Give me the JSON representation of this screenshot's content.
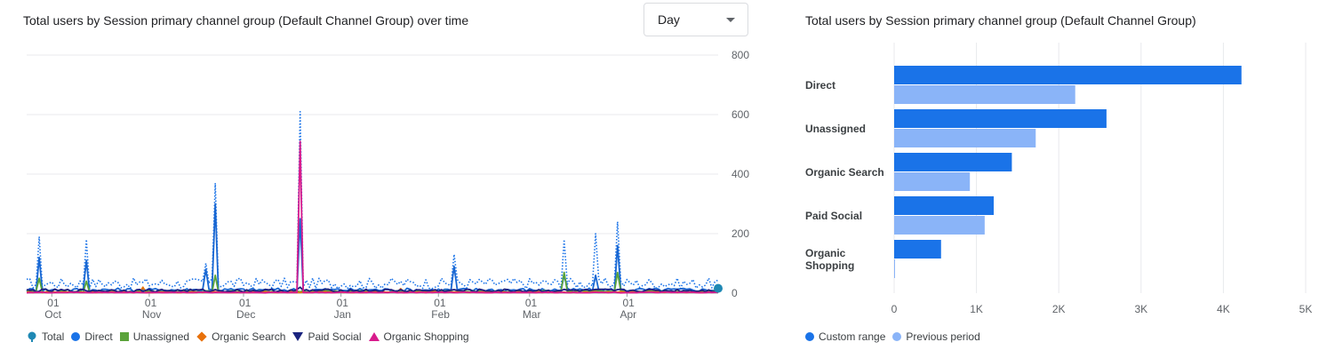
{
  "left_card": {
    "title": "Total users by Session primary channel group (Default Channel Group) over time",
    "dropdown_value": "Day"
  },
  "right_card": {
    "title": "Total users by Session primary channel group (Default Channel Group)"
  },
  "colors": {
    "Total": "#1a73e8",
    "Direct": "#1967d2",
    "Unassigned": "#5aa33a",
    "Organic Search": "#e8710a",
    "Paid Social": "#1a237e",
    "Organic Shopping": "#d81b8c",
    "custom_range": "#1a73e8",
    "previous_period": "#8ab4f8",
    "total_marker": "#1e88b4"
  },
  "left_legend": [
    {
      "label": "Total",
      "shape": "pin",
      "color": "#1e88b4"
    },
    {
      "label": "Direct",
      "shape": "circle",
      "color": "#1a73e8"
    },
    {
      "label": "Unassigned",
      "shape": "square",
      "color": "#5aa33a"
    },
    {
      "label": "Organic Search",
      "shape": "diamond",
      "color": "#e8710a"
    },
    {
      "label": "Paid Social",
      "shape": "tri-down",
      "color": "#1a237e"
    },
    {
      "label": "Organic Shopping",
      "shape": "tri-up",
      "color": "#d81b8c"
    }
  ],
  "right_legend": [
    {
      "label": "Custom range",
      "color": "#1a73e8"
    },
    {
      "label": "Previous period",
      "color": "#8ab4f8"
    }
  ],
  "chart_data": [
    {
      "type": "line",
      "title": "Total users by Session primary channel group (Default Channel Group) over time",
      "granularity": "Day",
      "y_ticks": [
        "0",
        "200",
        "400",
        "600",
        "800"
      ],
      "ylim": [
        0,
        800
      ],
      "y_axis_position": "right",
      "x_tick_labels": [
        {
          "day": "01",
          "month": "Oct"
        },
        {
          "day": "01",
          "month": "Nov"
        },
        {
          "day": "01",
          "month": "Dec"
        },
        {
          "day": "01",
          "month": "Jan"
        },
        {
          "day": "01",
          "month": "Feb"
        },
        {
          "day": "01",
          "month": "Mar"
        },
        {
          "day": "01",
          "month": "Apr"
        }
      ],
      "x_start": "2023-09-23",
      "x_end": "2024-04-30",
      "x_ticks_dates": [
        "2023-10-01",
        "2023-11-01",
        "2023-12-01",
        "2024-01-01",
        "2024-02-01",
        "2024-03-01",
        "2024-04-01"
      ],
      "series": [
        {
          "name": "Total",
          "style": "dotted",
          "baseline": 30,
          "spikes": [
            [
              "2023-09-27",
              190
            ],
            [
              "2023-10-12",
              180
            ],
            [
              "2023-11-19",
              100
            ],
            [
              "2023-11-22",
              370
            ],
            [
              "2023-12-19",
              610
            ],
            [
              "2024-02-06",
              130
            ],
            [
              "2024-03-12",
              180
            ],
            [
              "2024-03-22",
              200
            ],
            [
              "2024-03-29",
              240
            ]
          ]
        },
        {
          "name": "Direct",
          "style": "solid",
          "baseline": 10,
          "spikes": [
            [
              "2023-09-27",
              120
            ],
            [
              "2023-10-12",
              110
            ],
            [
              "2023-11-19",
              80
            ],
            [
              "2023-11-22",
              300
            ],
            [
              "2023-12-19",
              250
            ],
            [
              "2024-02-06",
              90
            ],
            [
              "2024-03-12",
              60
            ],
            [
              "2024-03-22",
              60
            ],
            [
              "2024-03-29",
              160
            ]
          ]
        },
        {
          "name": "Unassigned",
          "style": "solid",
          "baseline": 5,
          "spikes": [
            [
              "2023-09-27",
              50
            ],
            [
              "2023-10-12",
              40
            ],
            [
              "2023-11-22",
              60
            ],
            [
              "2024-03-12",
              70
            ],
            [
              "2024-03-29",
              70
            ]
          ]
        },
        {
          "name": "Organic Search",
          "style": "solid",
          "baseline": 3,
          "spikes": [
            [
              "2023-10-30",
              20
            ],
            [
              "2024-01-20",
              15
            ]
          ]
        },
        {
          "name": "Paid Social",
          "style": "solid",
          "baseline": 8,
          "spikes": [
            [
              "2023-12-19",
              20
            ]
          ]
        },
        {
          "name": "Organic Shopping",
          "style": "solid",
          "baseline": 2,
          "spikes": [
            [
              "2023-12-19",
              510
            ]
          ]
        }
      ]
    },
    {
      "type": "bar",
      "orientation": "horizontal",
      "title": "Total users by Session primary channel group (Default Channel Group)",
      "categories": [
        "Direct",
        "Unassigned",
        "Organic Search",
        "Paid Social",
        "Organic Shopping"
      ],
      "series": [
        {
          "name": "Custom range",
          "values": [
            4220,
            2580,
            1430,
            1210,
            570
          ]
        },
        {
          "name": "Previous period",
          "values": [
            2200,
            1720,
            920,
            1100,
            10
          ]
        }
      ],
      "x_ticks": [
        "0",
        "1K",
        "2K",
        "3K",
        "4K",
        "5K"
      ],
      "xlim": [
        0,
        5000
      ]
    }
  ]
}
